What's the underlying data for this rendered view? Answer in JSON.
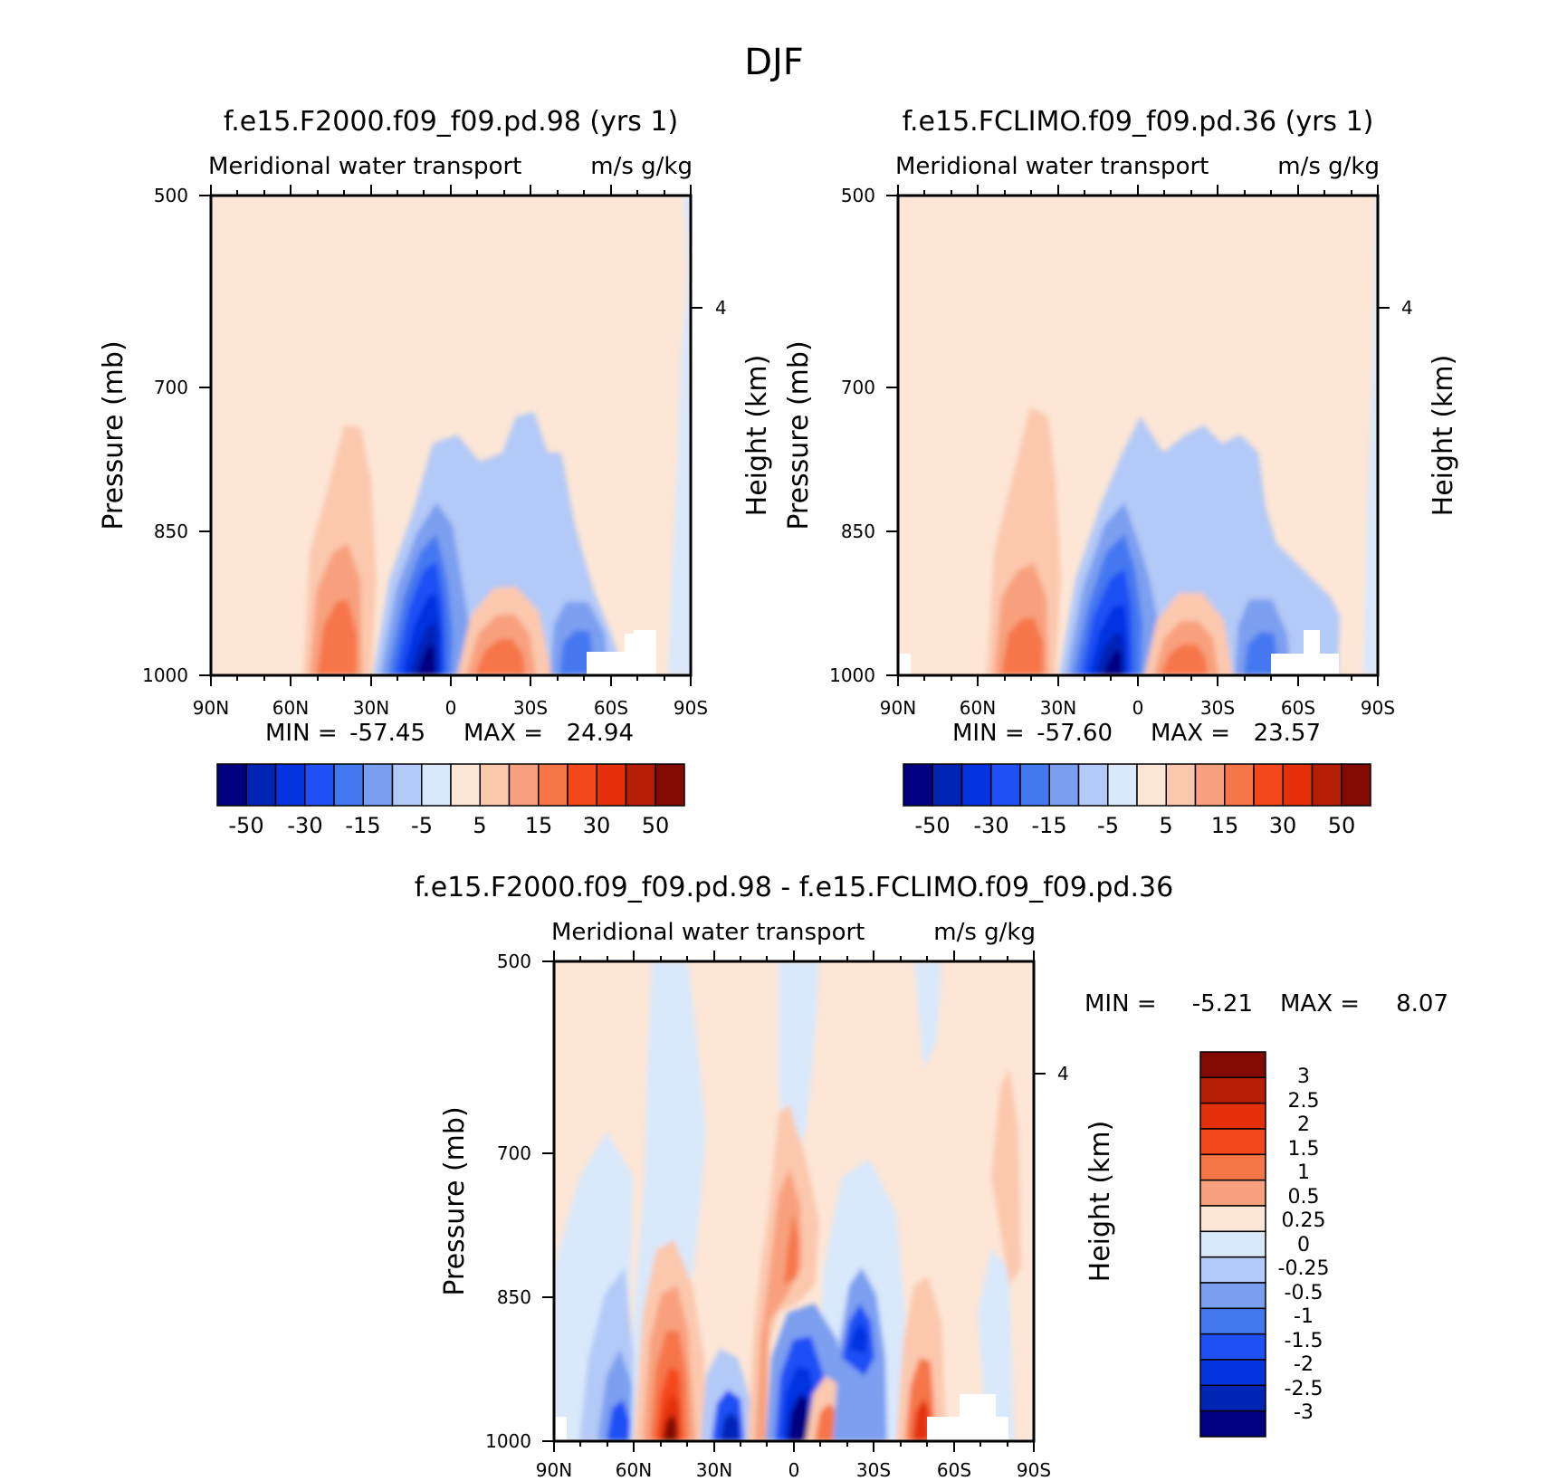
{
  "figure": {
    "title": "DJF"
  },
  "colors": {
    "abs_levels": [
      "#000080",
      "#0024b4",
      "#0433e0",
      "#1e50f5",
      "#4478f0",
      "#7b9ff0",
      "#b3c9f7",
      "#d9e8fb",
      "#fde6d6",
      "#fbc8ae",
      "#f8a07d",
      "#f67648",
      "#f5471c",
      "#e33008",
      "#b51e05",
      "#820a00"
    ],
    "diff_levels": [
      "#820a00",
      "#b51e05",
      "#e33008",
      "#f5471c",
      "#f67648",
      "#f8a07d",
      "#fde6d6",
      "#d9e8fb",
      "#b3c9f7",
      "#7b9ff0",
      "#4478f0",
      "#1e50f5",
      "#0433e0",
      "#0024b4",
      "#000080"
    ]
  },
  "chart_data": [
    {
      "type": "heatmap",
      "panel": "top-left",
      "title": "f.e15.F2000.f09_f09.pd.98 (yrs  1)",
      "left_string": "Meridional water transport",
      "right_string": "m/s g/kg",
      "xlabel": "",
      "ylabel": "Pressure (mb)",
      "ylabel_right": "Height (km)",
      "x_ticks": [
        "90N",
        "60N",
        "30N",
        "0",
        "30S",
        "60S",
        "90S"
      ],
      "xlim": [
        90,
        -90
      ],
      "y_ticks": [
        "500",
        "700",
        "850",
        "1000"
      ],
      "y_tick_values": [
        500,
        700,
        850,
        1000
      ],
      "ylim": [
        500,
        1000
      ],
      "y_right_ticks": [
        "4"
      ],
      "y_right_tick_pressure": [
        616
      ],
      "stats": {
        "min_label": "MIN =",
        "min": "-57.45",
        "max_label": "MAX =",
        "max": "24.94"
      },
      "extrema": {
        "min": -57.45,
        "max": 24.94
      },
      "colorbar": {
        "orientation": "horizontal",
        "labels": [
          "-50",
          "-30",
          "-15",
          "-5",
          "5",
          "15",
          "30",
          "50"
        ],
        "levels": [
          -50,
          -40,
          -30,
          -20,
          -15,
          -10,
          -5,
          0,
          5,
          10,
          15,
          20,
          30,
          40,
          50
        ]
      }
    },
    {
      "type": "heatmap",
      "panel": "top-right",
      "title": "f.e15.FCLIMO.f09_f09.pd.36 (yrs  1)",
      "left_string": "Meridional water transport",
      "right_string": "m/s g/kg",
      "xlabel": "",
      "ylabel": "Pressure (mb)",
      "ylabel_right": "Height (km)",
      "x_ticks": [
        "90N",
        "60N",
        "30N",
        "0",
        "30S",
        "60S",
        "90S"
      ],
      "xlim": [
        90,
        -90
      ],
      "y_ticks": [
        "500",
        "700",
        "850",
        "1000"
      ],
      "y_tick_values": [
        500,
        700,
        850,
        1000
      ],
      "ylim": [
        500,
        1000
      ],
      "y_right_ticks": [
        "4"
      ],
      "y_right_tick_pressure": [
        616
      ],
      "stats": {
        "min_label": "MIN =",
        "min": "-57.60",
        "max_label": "MAX =",
        "max": "23.57"
      },
      "extrema": {
        "min": -57.6,
        "max": 23.57
      },
      "colorbar": {
        "orientation": "horizontal",
        "labels": [
          "-50",
          "-30",
          "-15",
          "-5",
          "5",
          "15",
          "30",
          "50"
        ],
        "levels": [
          -50,
          -40,
          -30,
          -20,
          -15,
          -10,
          -5,
          0,
          5,
          10,
          15,
          20,
          30,
          40,
          50
        ]
      }
    },
    {
      "type": "heatmap",
      "panel": "bottom",
      "title": "f.e15.F2000.f09_f09.pd.98 - f.e15.FCLIMO.f09_f09.pd.36",
      "left_string": "Meridional water transport",
      "right_string": "m/s g/kg",
      "xlabel": "",
      "ylabel": "Pressure (mb)",
      "ylabel_right": "Height (km)",
      "x_ticks": [
        "90N",
        "60N",
        "30N",
        "0",
        "30S",
        "60S",
        "90S"
      ],
      "xlim": [
        90,
        -90
      ],
      "y_ticks": [
        "500",
        "700",
        "850",
        "1000"
      ],
      "y_tick_values": [
        500,
        700,
        850,
        1000
      ],
      "ylim": [
        500,
        1000
      ],
      "y_right_ticks": [
        "4"
      ],
      "y_right_tick_pressure": [
        616
      ],
      "stats": {
        "min_label": "MIN =",
        "min": "-5.21",
        "max_label": "MAX =",
        "max": "8.07"
      },
      "extrema": {
        "min": -5.21,
        "max": 8.07
      },
      "colorbar": {
        "orientation": "vertical",
        "labels": [
          "3",
          "2.5",
          "2",
          "1.5",
          "1",
          "0.5",
          "0.25",
          "0",
          "-0.25",
          "-0.5",
          "-1",
          "-1.5",
          "-2",
          "-2.5",
          "-3"
        ],
        "levels": [
          3,
          2.5,
          2,
          1.5,
          1,
          0.5,
          0.25,
          0,
          -0.25,
          -0.5,
          -1,
          -1.5,
          -2,
          -2.5,
          -3
        ]
      }
    }
  ]
}
